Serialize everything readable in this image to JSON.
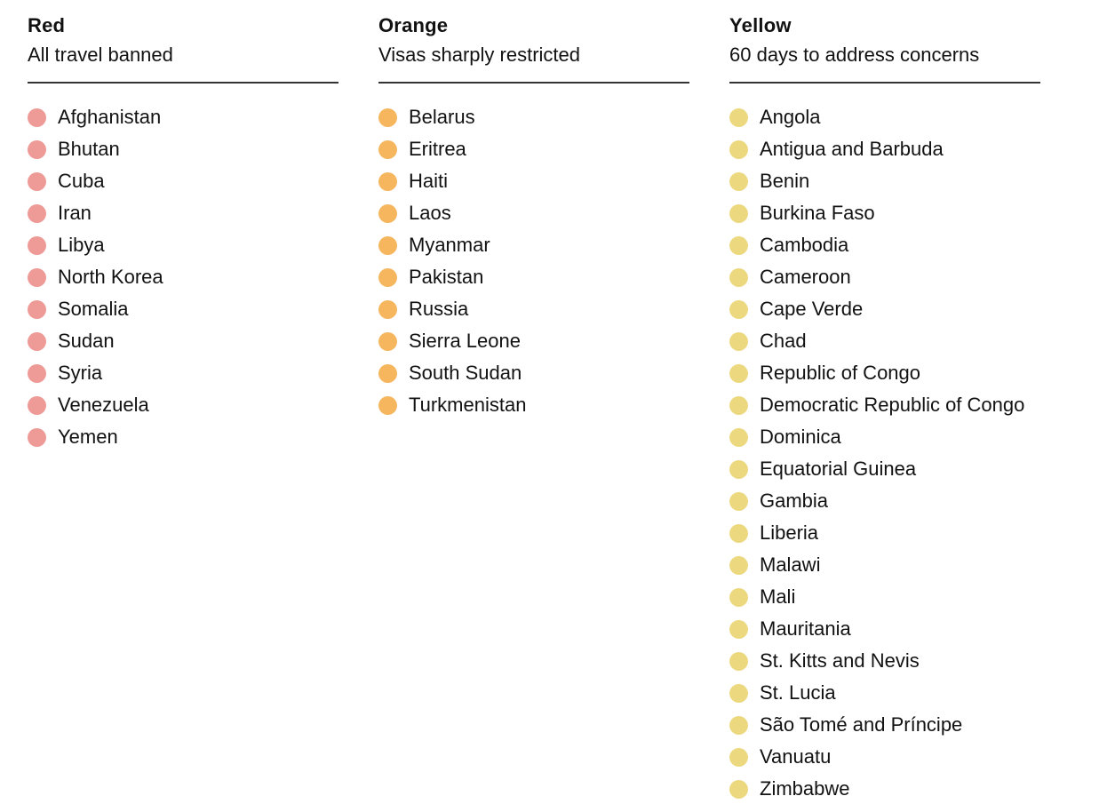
{
  "page": {
    "background": "#ffffff",
    "text_color": "#121212",
    "divider_color": "#333333"
  },
  "chart_data": {
    "type": "table",
    "legend_position": "three-column category lists",
    "groups": [
      {
        "label": "Red",
        "description": "All travel banned",
        "dot_color": "#ee9a97",
        "countries": [
          "Afghanistan",
          "Bhutan",
          "Cuba",
          "Iran",
          "Libya",
          "North Korea",
          "Somalia",
          "Sudan",
          "Syria",
          "Venezuela",
          "Yemen"
        ]
      },
      {
        "label": "Orange",
        "description": "Visas sharply restricted",
        "dot_color": "#f6b65e",
        "countries": [
          "Belarus",
          "Eritrea",
          "Haiti",
          "Laos",
          "Myanmar",
          "Pakistan",
          "Russia",
          "Sierra Leone",
          "South Sudan",
          "Turkmenistan"
        ]
      },
      {
        "label": "Yellow",
        "description": "60 days to address concerns",
        "dot_color": "#ecd97f",
        "countries": [
          "Angola",
          "Antigua and Barbuda",
          "Benin",
          "Burkina Faso",
          "Cambodia",
          "Cameroon",
          "Cape Verde",
          "Chad",
          "Republic of Congo",
          "Democratic Republic of Congo",
          "Dominica",
          "Equatorial Guinea",
          "Gambia",
          "Liberia",
          "Malawi",
          "Mali",
          "Mauritania",
          "St. Kitts and Nevis",
          "St. Lucia",
          "São Tomé and Príncipe",
          "Vanuatu",
          "Zimbabwe"
        ]
      }
    ]
  }
}
